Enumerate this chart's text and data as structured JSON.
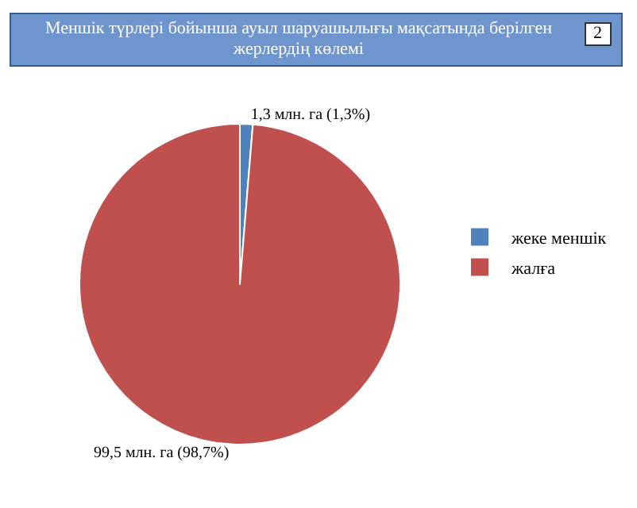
{
  "chart_data": {
    "type": "pie",
    "title": "Меншік түрлері бойынша ауыл шаруашылығы мақсатында берілген жерлердің көлемі",
    "annotations": [
      "2"
    ],
    "categories": [
      "жеке меншік",
      "жалға"
    ],
    "values": [
      1.3,
      99.5
    ],
    "colors": [
      "#4f81bd",
      "#c0504d"
    ],
    "value_labels": [
      "1,3 млн. га (1,3%)",
      "99,5 млн. га (98,7%)"
    ],
    "legend": "right"
  }
}
